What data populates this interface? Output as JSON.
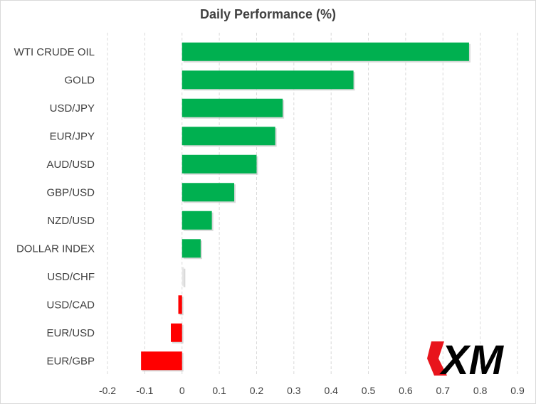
{
  "chart_data": {
    "type": "bar",
    "orientation": "horizontal",
    "title": "Daily Performance  (%)",
    "categories": [
      "WTI CRUDE OIL",
      "GOLD",
      "USD/JPY",
      "EUR/JPY",
      "AUD/USD",
      "GBP/USD",
      "NZD/USD",
      "DOLLAR INDEX",
      "USD/CHF",
      "USD/CAD",
      "EUR/USD",
      "EUR/GBP"
    ],
    "values": [
      0.77,
      0.46,
      0.27,
      0.25,
      0.2,
      0.14,
      0.08,
      0.05,
      0.005,
      -0.01,
      -0.03,
      -0.11
    ],
    "xlim": [
      -0.2,
      0.9
    ],
    "xticks": [
      "-0.2",
      "-0.1",
      "0",
      "0.1",
      "0.2",
      "0.3",
      "0.4",
      "0.5",
      "0.6",
      "0.7",
      "0.8",
      "0.9"
    ],
    "grid": "vertical dashed",
    "legend": "none",
    "colors": {
      "positive": "#00b050",
      "negative": "#ff0000",
      "grid": "#d9d9d9"
    }
  },
  "logo": {
    "text": "XM",
    "color": "#000000",
    "accent": "#e8141c"
  }
}
